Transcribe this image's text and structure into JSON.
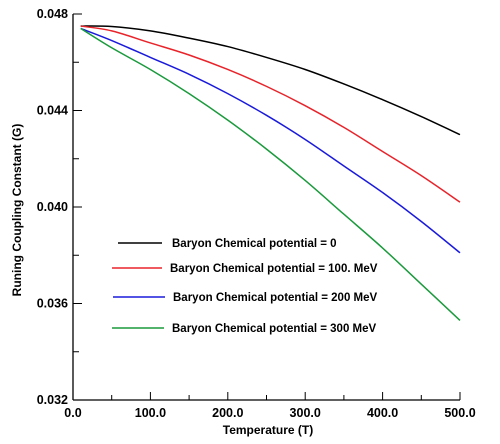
{
  "chart_data": {
    "type": "line",
    "title": "",
    "xlabel": "Temperature (T)",
    "ylabel": "Runing Coupling Constant (G)",
    "xlim": [
      0,
      500
    ],
    "ylim": [
      0.032,
      0.048
    ],
    "xticks": [
      0,
      100,
      200,
      300,
      400,
      500
    ],
    "xtick_labels": [
      "0.0",
      "100.0",
      "200.0",
      "300.0",
      "400.0",
      "500.0"
    ],
    "yticks": [
      0.032,
      0.036,
      0.04,
      0.044,
      0.048
    ],
    "ytick_labels": [
      "0.032",
      "0.036",
      "0.040",
      "0.044",
      "0.048"
    ],
    "grid": false,
    "legend_position": "lower-left",
    "x": [
      10,
      50,
      100,
      150,
      200,
      250,
      300,
      350,
      400,
      450,
      500
    ],
    "series": [
      {
        "name": "Baryon Chemical potential = 0",
        "color": "#000000",
        "values": [
          0.0475,
          0.04748,
          0.0473,
          0.047,
          0.04665,
          0.0462,
          0.0457,
          0.0451,
          0.04445,
          0.04375,
          0.043
        ]
      },
      {
        "name": "Baryon Chemical potential = 100. MeV",
        "color": "#e8232a",
        "values": [
          0.0475,
          0.0473,
          0.0468,
          0.0463,
          0.0457,
          0.045,
          0.0442,
          0.0433,
          0.0423,
          0.0413,
          0.0402
        ]
      },
      {
        "name": "Baryon Chemical potential = 200 MeV",
        "color": "#1a1adc",
        "values": [
          0.0474,
          0.0469,
          0.0462,
          0.0455,
          0.0447,
          0.0438,
          0.0428,
          0.0417,
          0.0406,
          0.0394,
          0.0381
        ]
      },
      {
        "name": "Baryon Chemical potential = 300 MeV",
        "color": "#1a9a3c",
        "values": [
          0.0474,
          0.0466,
          0.0457,
          0.0447,
          0.0436,
          0.0424,
          0.0411,
          0.0397,
          0.0383,
          0.0368,
          0.0353
        ]
      }
    ]
  }
}
